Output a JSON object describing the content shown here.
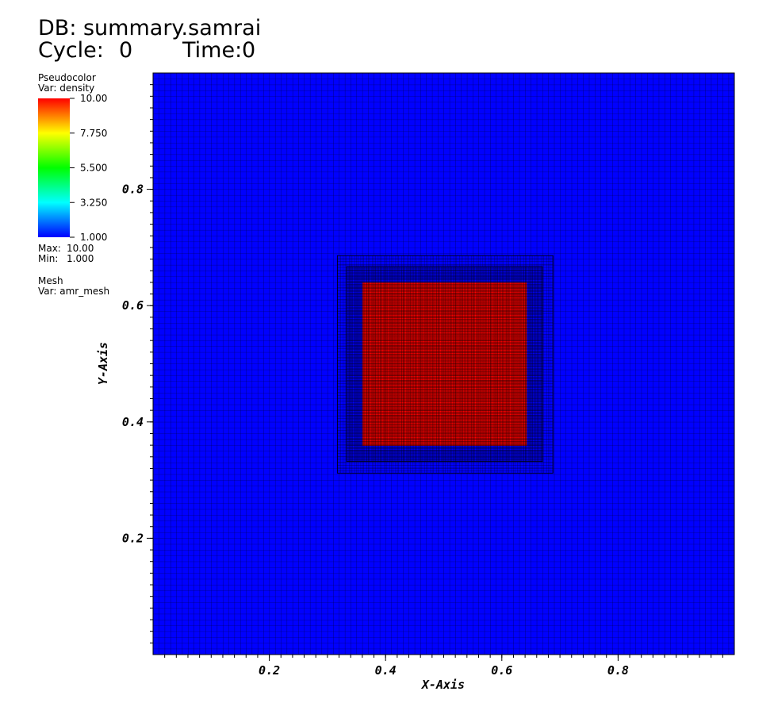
{
  "chart_data": {
    "type": "pseudocolor",
    "db_label": "DB: summary.samrai",
    "cycle_label": "Cycle:",
    "cycle": 0,
    "time_label": "Time:",
    "time": 0,
    "plot_name": "Pseudocolor",
    "plot_var": "Var: density",
    "max_label": "Max:",
    "max": {
      "value": 10,
      "label": "10.00"
    },
    "min_label": "Min:",
    "min": {
      "value": 1,
      "label": "1.000"
    },
    "mesh_name": "Mesh",
    "mesh_var": "Var: amr_mesh",
    "colormap": [
      "#0000ff",
      "#00ffff",
      "#00ff00",
      "#ffff00",
      "#ff0000"
    ],
    "clim": [
      1,
      10
    ],
    "cticks": [
      {
        "value": 1,
        "label": "1.000"
      },
      {
        "value": 3.25,
        "label": "3.250"
      },
      {
        "value": 5.5,
        "label": "5.500"
      },
      {
        "value": 7.75,
        "label": "7.750"
      },
      {
        "value": 10,
        "label": "10.00"
      }
    ],
    "xlabel": "X-Axis",
    "ylabel": "Y-Axis",
    "xlim": [
      0,
      1
    ],
    "ylim": [
      0,
      1
    ],
    "xticks": [
      0.2,
      0.4,
      0.6,
      0.8
    ],
    "yticks": [
      0.2,
      0.4,
      0.6,
      0.8
    ],
    "mesh_levels": [
      {
        "xlim": [
          0,
          1
        ],
        "ylim": [
          0,
          1
        ],
        "cell": 0.01
      },
      {
        "xlim": [
          0.317,
          0.688
        ],
        "ylim": [
          0.312,
          0.686
        ],
        "cell": 0.005
      },
      {
        "xlim": [
          0.333,
          0.67
        ],
        "ylim": [
          0.332,
          0.667
        ],
        "cell": 0.0025
      }
    ],
    "density": [
      {
        "xlim": [
          0,
          1
        ],
        "ylim": [
          0,
          1
        ],
        "value": 1
      },
      {
        "xlim": [
          0.36,
          0.643
        ],
        "ylim": [
          0.359,
          0.64
        ],
        "value": 10
      }
    ]
  }
}
